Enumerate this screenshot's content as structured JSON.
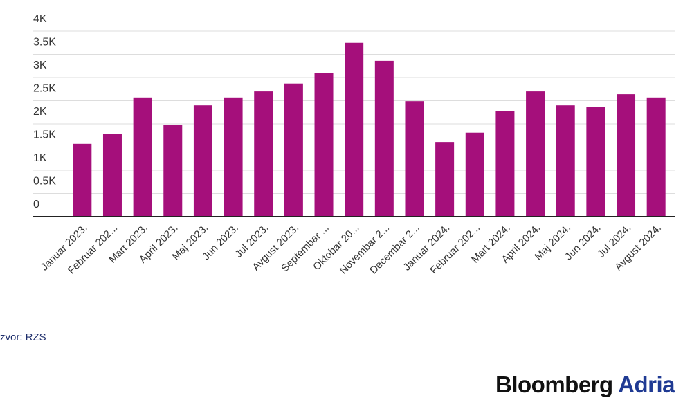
{
  "chart_data": {
    "type": "bar",
    "categories": [
      "Januar 2023.",
      "Februar 202...",
      "Mart 2023.",
      "April 2023.",
      "Maj 2023.",
      "Jun 2023.",
      "Jul 2023.",
      "Avgust 2023.",
      "Septembar ...",
      "Oktobar 20...",
      "Novembar 2...",
      "Decembar 2...",
      "Januar 2024.",
      "Februar 202...",
      "Mart 2024.",
      "April 2024.",
      "Maj 2024.",
      "Jun 2024.",
      "Jul 2024.",
      "Avgust 2024."
    ],
    "values": [
      1570,
      1780,
      2570,
      1970,
      2400,
      2570,
      2700,
      2870,
      3100,
      3750,
      3360,
      2490,
      1610,
      1810,
      2280,
      2700,
      2400,
      2360,
      2640,
      2570
    ],
    "color": "#a50f7b",
    "ylim": [
      0,
      4000
    ],
    "yticks": [
      0,
      {
        "value": 500,
        "label": "0.5K"
      },
      {
        "value": 1000,
        "label": "1K"
      },
      {
        "value": 1500,
        "label": "1.5K"
      },
      {
        "value": 2000,
        "label": "2K"
      },
      {
        "value": 2500,
        "label": "2.5K"
      },
      {
        "value": 3000,
        "label": "3K"
      },
      {
        "value": 3500,
        "label": "3.5K"
      },
      {
        "value": 4000,
        "label": "4K"
      }
    ],
    "grid": true
  },
  "source": "zvor: RZS",
  "brand": {
    "name": "Bloomberg",
    "suffix": "Adria"
  }
}
